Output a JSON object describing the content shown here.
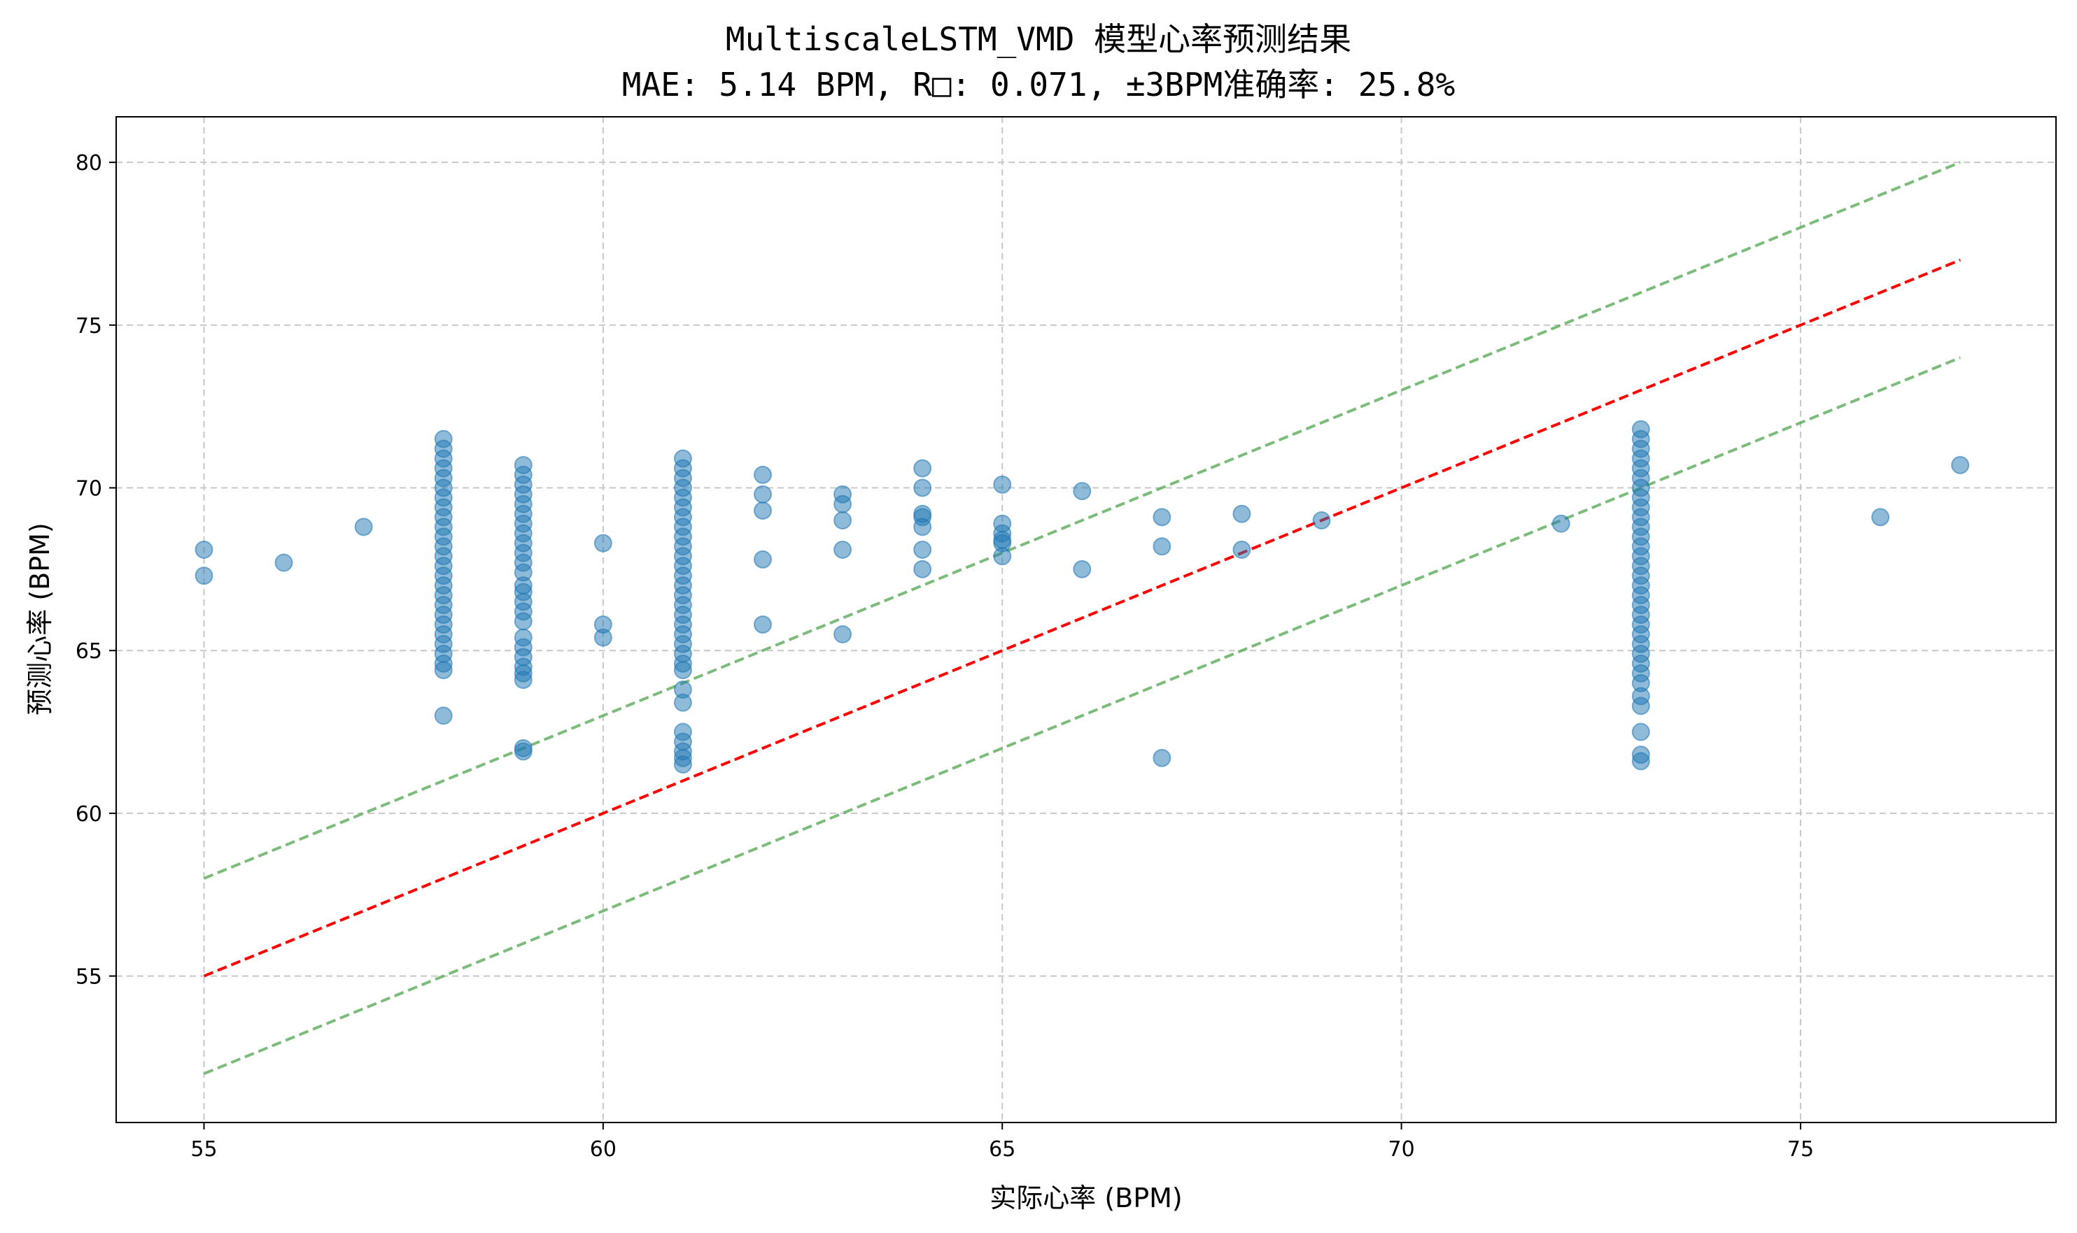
{
  "chart_data": {
    "type": "scatter",
    "title": "MultiscaleLSTM_VMD 模型心率预测结果",
    "subtitle": "MAE: 5.14 BPM, R□: 0.071, ±3BPM准确率: 25.8%",
    "xlabel": "实际心率 (BPM)",
    "ylabel": "预测心率 (BPM)",
    "xlim": [
      53.9,
      78.2
    ],
    "ylim": [
      50.5,
      81.4
    ],
    "xticks": [
      55,
      60,
      65,
      70,
      75
    ],
    "yticks": [
      55,
      60,
      65,
      70,
      75,
      80
    ],
    "grid": true,
    "colors": {
      "points": "#1f77b4",
      "ideal_line": "#ff0000",
      "band_lines": "#5aab5a"
    },
    "series": [
      {
        "type": "scatter",
        "points": [
          [
            55,
            68.1
          ],
          [
            55,
            67.3
          ],
          [
            56,
            67.7
          ],
          [
            57,
            68.8
          ],
          [
            58,
            71.5
          ],
          [
            58,
            71.2
          ],
          [
            58,
            70.9
          ],
          [
            58,
            70.6
          ],
          [
            58,
            70.3
          ],
          [
            58,
            70.0
          ],
          [
            58,
            69.7
          ],
          [
            58,
            69.4
          ],
          [
            58,
            69.1
          ],
          [
            58,
            68.8
          ],
          [
            58,
            68.5
          ],
          [
            58,
            68.2
          ],
          [
            58,
            67.9
          ],
          [
            58,
            67.6
          ],
          [
            58,
            67.3
          ],
          [
            58,
            67.0
          ],
          [
            58,
            66.7
          ],
          [
            58,
            66.4
          ],
          [
            58,
            66.1
          ],
          [
            58,
            65.8
          ],
          [
            58,
            65.5
          ],
          [
            58,
            65.2
          ],
          [
            58,
            64.9
          ],
          [
            58,
            64.6
          ],
          [
            58,
            64.4
          ],
          [
            58,
            63.0
          ],
          [
            59,
            70.7
          ],
          [
            59,
            70.4
          ],
          [
            59,
            70.1
          ],
          [
            59,
            69.8
          ],
          [
            59,
            69.5
          ],
          [
            59,
            69.2
          ],
          [
            59,
            68.9
          ],
          [
            59,
            68.6
          ],
          [
            59,
            68.3
          ],
          [
            59,
            68.0
          ],
          [
            59,
            67.7
          ],
          [
            59,
            67.4
          ],
          [
            59,
            67.0
          ],
          [
            59,
            66.8
          ],
          [
            59,
            66.5
          ],
          [
            59,
            66.2
          ],
          [
            59,
            65.9
          ],
          [
            59,
            65.4
          ],
          [
            59,
            65.1
          ],
          [
            59,
            64.8
          ],
          [
            59,
            64.5
          ],
          [
            59,
            64.3
          ],
          [
            59,
            64.1
          ],
          [
            59,
            62.0
          ],
          [
            59,
            61.9
          ],
          [
            60,
            68.3
          ],
          [
            60,
            65.8
          ],
          [
            60,
            65.4
          ],
          [
            61,
            70.9
          ],
          [
            61,
            70.6
          ],
          [
            61,
            70.3
          ],
          [
            61,
            70.0
          ],
          [
            61,
            69.7
          ],
          [
            61,
            69.4
          ],
          [
            61,
            69.1
          ],
          [
            61,
            68.8
          ],
          [
            61,
            68.5
          ],
          [
            61,
            68.2
          ],
          [
            61,
            67.9
          ],
          [
            61,
            67.6
          ],
          [
            61,
            67.3
          ],
          [
            61,
            67.0
          ],
          [
            61,
            66.7
          ],
          [
            61,
            66.4
          ],
          [
            61,
            66.1
          ],
          [
            61,
            65.8
          ],
          [
            61,
            65.5
          ],
          [
            61,
            65.2
          ],
          [
            61,
            64.9
          ],
          [
            61,
            64.6
          ],
          [
            61,
            64.4
          ],
          [
            61,
            63.8
          ],
          [
            61,
            63.4
          ],
          [
            61,
            62.5
          ],
          [
            61,
            62.2
          ],
          [
            61,
            61.9
          ],
          [
            61,
            61.7
          ],
          [
            61,
            61.5
          ],
          [
            62,
            70.4
          ],
          [
            62,
            69.8
          ],
          [
            62,
            69.3
          ],
          [
            62,
            67.8
          ],
          [
            62,
            65.8
          ],
          [
            63,
            69.8
          ],
          [
            63,
            69.5
          ],
          [
            63,
            69.0
          ],
          [
            63,
            68.1
          ],
          [
            63,
            65.5
          ],
          [
            64,
            70.6
          ],
          [
            64,
            70.0
          ],
          [
            64,
            69.2
          ],
          [
            64,
            69.1
          ],
          [
            64,
            68.8
          ],
          [
            64,
            68.1
          ],
          [
            64,
            67.5
          ],
          [
            65,
            70.1
          ],
          [
            65,
            68.9
          ],
          [
            65,
            68.6
          ],
          [
            65,
            68.4
          ],
          [
            65,
            68.3
          ],
          [
            65,
            67.9
          ],
          [
            66,
            69.9
          ],
          [
            66,
            67.5
          ],
          [
            67,
            69.1
          ],
          [
            67,
            68.2
          ],
          [
            67,
            61.7
          ],
          [
            68,
            69.2
          ],
          [
            68,
            68.1
          ],
          [
            69,
            69.0
          ],
          [
            72,
            68.9
          ],
          [
            73,
            71.8
          ],
          [
            73,
            71.5
          ],
          [
            73,
            71.2
          ],
          [
            73,
            70.9
          ],
          [
            73,
            70.6
          ],
          [
            73,
            70.3
          ],
          [
            73,
            70.0
          ],
          [
            73,
            69.7
          ],
          [
            73,
            69.4
          ],
          [
            73,
            69.1
          ],
          [
            73,
            68.8
          ],
          [
            73,
            68.5
          ],
          [
            73,
            68.2
          ],
          [
            73,
            67.9
          ],
          [
            73,
            67.6
          ],
          [
            73,
            67.3
          ],
          [
            73,
            67.0
          ],
          [
            73,
            66.7
          ],
          [
            73,
            66.4
          ],
          [
            73,
            66.1
          ],
          [
            73,
            65.8
          ],
          [
            73,
            65.5
          ],
          [
            73,
            65.2
          ],
          [
            73,
            64.9
          ],
          [
            73,
            64.6
          ],
          [
            73,
            64.3
          ],
          [
            73,
            64.0
          ],
          [
            73,
            63.6
          ],
          [
            73,
            63.3
          ],
          [
            73,
            62.5
          ],
          [
            73,
            61.8
          ],
          [
            73,
            61.6
          ],
          [
            76,
            69.1
          ],
          [
            77,
            70.7
          ]
        ]
      },
      {
        "type": "line",
        "style": "dashed",
        "x": [
          55,
          77
        ],
        "y": [
          55,
          77
        ]
      },
      {
        "type": "line",
        "style": "dashed",
        "x": [
          55,
          77
        ],
        "y": [
          58,
          80
        ]
      },
      {
        "type": "line",
        "style": "dashed",
        "x": [
          55,
          77
        ],
        "y": [
          52,
          74
        ]
      }
    ]
  }
}
